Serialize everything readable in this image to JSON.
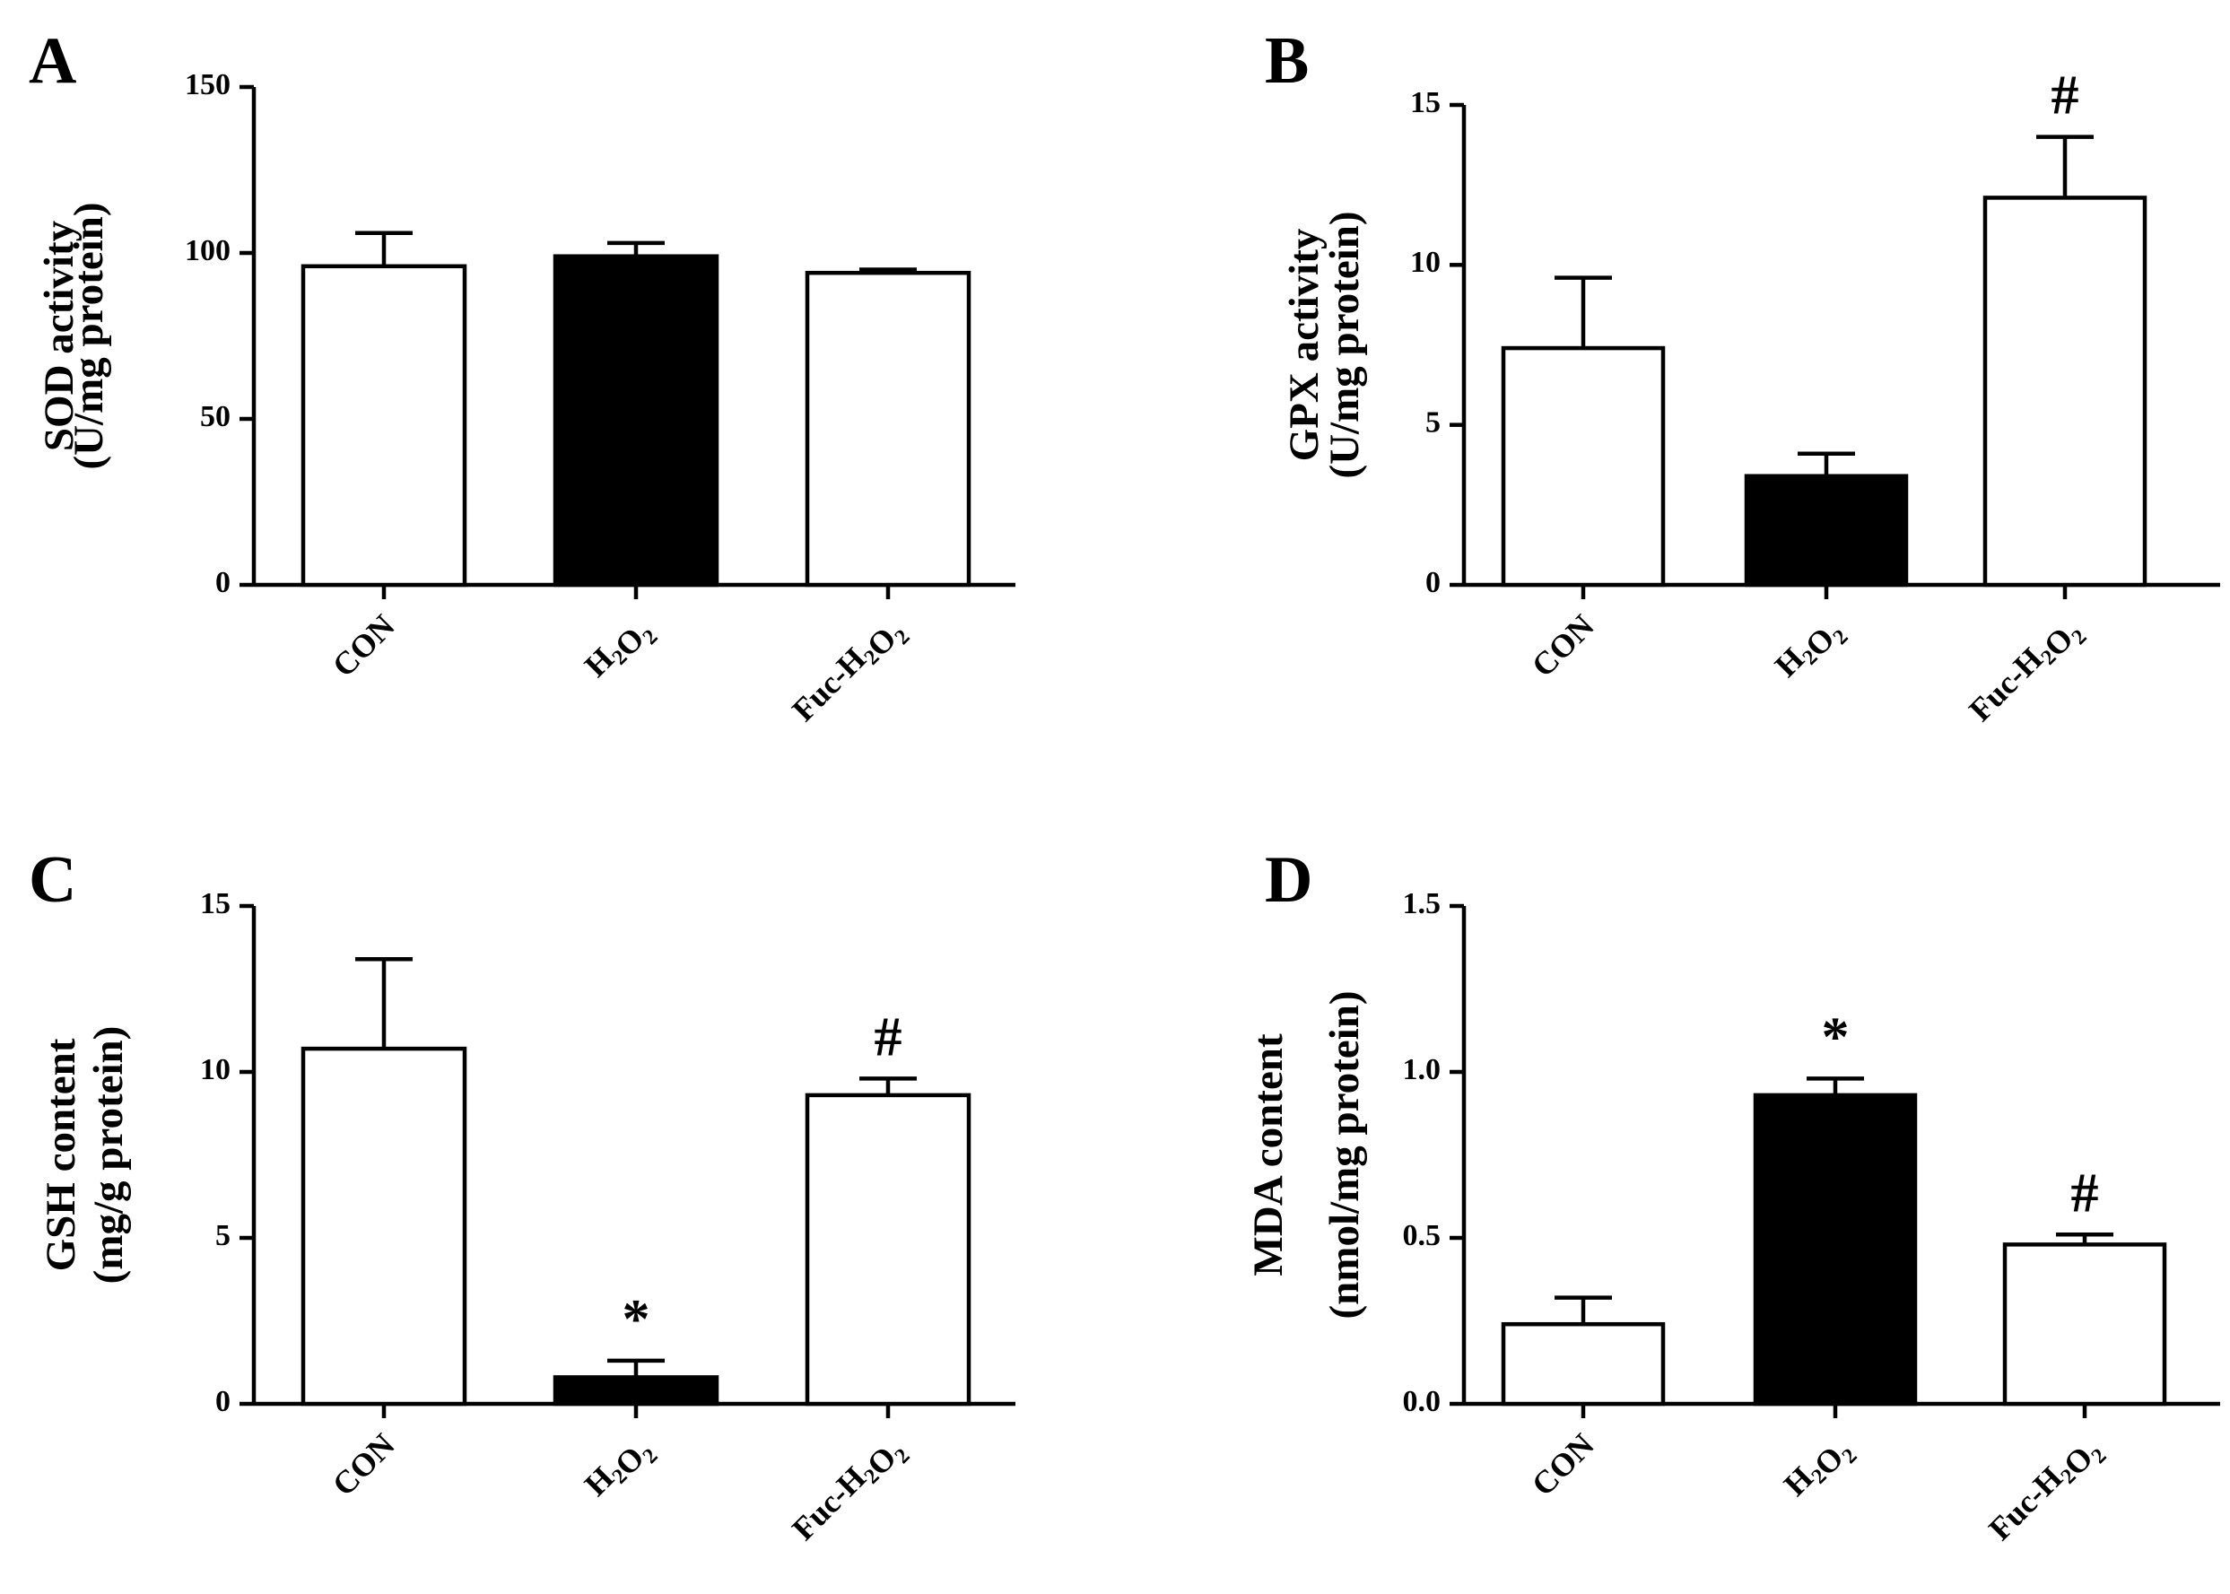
{
  "figure": {
    "background": "#ffffff",
    "bar_colors": {
      "CON": "#ffffff",
      "H2O2": "#000000",
      "Fuc-H2O2": "#ffffff"
    }
  },
  "chart_data": [
    {
      "panel": "A",
      "type": "bar",
      "categories": [
        {
          "key": "CON",
          "base": "CON",
          "sub": ""
        },
        {
          "key": "H2O2",
          "base": "H2O2",
          "sub": "2"
        },
        {
          "key": "Fuc-H2O2",
          "base": "Fuc-H2O2",
          "sub": "2"
        }
      ],
      "values": [
        96,
        99,
        94
      ],
      "errors": [
        10,
        4,
        1
      ],
      "annotations": [
        "",
        "",
        ""
      ],
      "ylabel_lines": [
        "SOD activity",
        "(U/mg protein)"
      ],
      "ylim": [
        0,
        150
      ],
      "yticks": [
        0,
        50,
        100,
        150
      ],
      "ytick_labels": [
        "0",
        "50",
        "100",
        "150"
      ]
    },
    {
      "panel": "B",
      "type": "bar",
      "categories": [
        {
          "key": "CON",
          "base": "CON",
          "sub": ""
        },
        {
          "key": "H2O2",
          "base": "H2O2",
          "sub": "2"
        },
        {
          "key": "Fuc-H2O2",
          "base": "Fuc-H2O2",
          "sub": "2"
        }
      ],
      "values": [
        7.4,
        3.4,
        12.1
      ],
      "errors": [
        2.2,
        0.7,
        1.9
      ],
      "annotations": [
        "",
        "",
        "#"
      ],
      "ylabel_lines": [
        "GPX activity",
        "(U/mg protein)"
      ],
      "ylim": [
        0,
        15
      ],
      "yticks": [
        0,
        5,
        10,
        15
      ],
      "ytick_labels": [
        "0",
        "5",
        "10",
        "15"
      ]
    },
    {
      "panel": "C",
      "type": "bar",
      "categories": [
        {
          "key": "CON",
          "base": "CON",
          "sub": ""
        },
        {
          "key": "H2O2",
          "base": "H2O2",
          "sub": "2"
        },
        {
          "key": "Fuc-H2O2",
          "base": "Fuc-H2O2",
          "sub": "2"
        }
      ],
      "values": [
        10.7,
        0.8,
        9.3
      ],
      "errors": [
        2.7,
        0.5,
        0.5
      ],
      "annotations": [
        "",
        "*",
        "#"
      ],
      "ylabel_lines": [
        "GSH content",
        "(mg/g protein)"
      ],
      "ylim": [
        0,
        15
      ],
      "yticks": [
        0,
        5,
        10,
        15
      ],
      "ytick_labels": [
        "0",
        "5",
        "10",
        "15"
      ]
    },
    {
      "panel": "D",
      "type": "bar",
      "categories": [
        {
          "key": "CON",
          "base": "CON",
          "sub": ""
        },
        {
          "key": "H2O2",
          "base": "H2O2",
          "sub": "2"
        },
        {
          "key": "Fuc-H2O2",
          "base": "Fuc-H2O2",
          "sub": "2"
        }
      ],
      "values": [
        0.24,
        0.93,
        0.48
      ],
      "errors": [
        0.08,
        0.05,
        0.03
      ],
      "annotations": [
        "",
        "*",
        "#"
      ],
      "ylabel_lines": [
        "MDA content",
        "(nmol/mg protein)"
      ],
      "ylim": [
        0,
        1.5
      ],
      "yticks": [
        0,
        0.5,
        1.0,
        1.5
      ],
      "ytick_labels": [
        "0.0",
        "0.5",
        "1.0",
        "1.5"
      ]
    }
  ]
}
